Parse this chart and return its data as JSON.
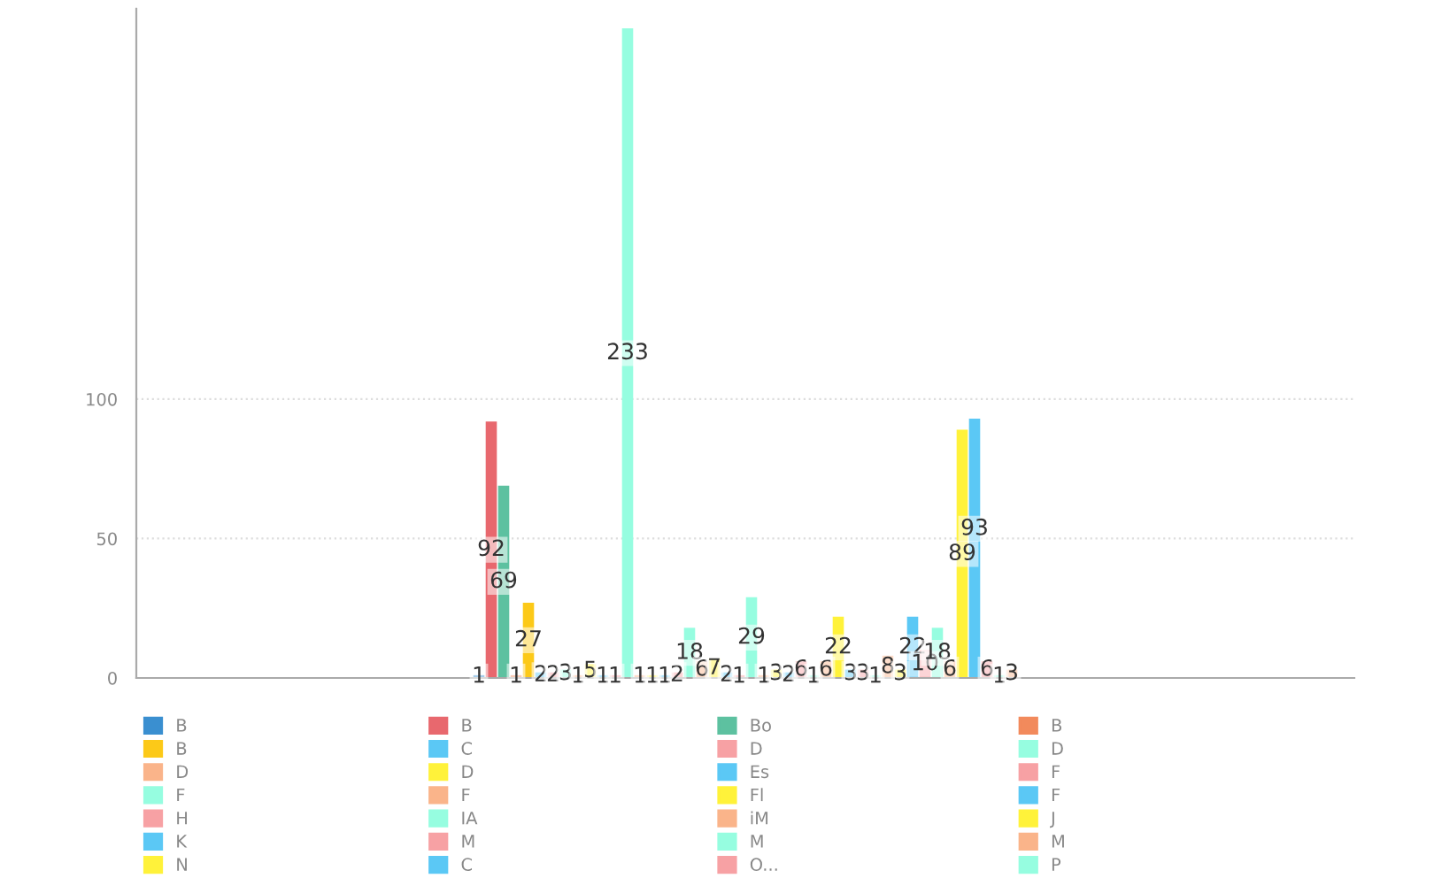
{
  "chart_data": {
    "type": "bar",
    "categories": [
      null
    ],
    "ylim": [
      0,
      240
    ],
    "yticks": [
      0,
      50,
      100
    ],
    "grid": "y",
    "legend": "bottom",
    "data_labels": true,
    "series": [
      {
        "name": "B",
        "color": "#3a8fd0",
        "values": [
          1
        ]
      },
      {
        "name": "B",
        "color": "#e8686e",
        "values": [
          92
        ]
      },
      {
        "name": "Bo",
        "color": "#5dc1a0",
        "values": [
          69
        ]
      },
      {
        "name": "B",
        "color": "#f28a5c",
        "values": [
          1
        ]
      },
      {
        "name": "B",
        "color": "#fcc918",
        "values": [
          27
        ]
      },
      {
        "name": "C",
        "color": "#5bc8f5",
        "values": [
          2
        ]
      },
      {
        "name": "D",
        "color": "#f7a1a4",
        "values": [
          2
        ]
      },
      {
        "name": "D",
        "color": "#96fde0",
        "values": [
          3
        ]
      },
      {
        "name": "D",
        "color": "#fab48a",
        "values": [
          1
        ]
      },
      {
        "name": "D",
        "color": "#fff23a",
        "values": [
          5
        ]
      },
      {
        "name": "Es",
        "color": "#5bc8f5",
        "values": [
          1
        ]
      },
      {
        "name": "F",
        "color": "#f7a1a4",
        "values": [
          1
        ]
      },
      {
        "name": "F",
        "color": "#96fde0",
        "values": [
          233
        ]
      },
      {
        "name": "F",
        "color": "#fab48a",
        "values": [
          1
        ]
      },
      {
        "name": "Fl",
        "color": "#fff23a",
        "values": [
          1
        ]
      },
      {
        "name": "F",
        "color": "#5bc8f5",
        "values": [
          1
        ]
      },
      {
        "name": "H",
        "color": "#f7a1a4",
        "values": [
          2
        ]
      },
      {
        "name": "IA",
        "color": "#96fde0",
        "values": [
          18
        ]
      },
      {
        "name": "iM",
        "color": "#fab48a",
        "values": [
          6
        ]
      },
      {
        "name": "J",
        "color": "#fff23a",
        "values": [
          7
        ]
      },
      {
        "name": "K",
        "color": "#5bc8f5",
        "values": [
          2
        ]
      },
      {
        "name": "M",
        "color": "#f7a1a4",
        "values": [
          1
        ]
      },
      {
        "name": "M",
        "color": "#96fde0",
        "values": [
          29
        ]
      },
      {
        "name": "M",
        "color": "#fab48a",
        "values": [
          1
        ]
      },
      {
        "name": "N",
        "color": "#fff23a",
        "values": [
          3
        ]
      },
      {
        "name": "C",
        "color": "#5bc8f5",
        "values": [
          2
        ]
      },
      {
        "name": "O...",
        "color": "#f7a1a4",
        "values": [
          6
        ]
      },
      {
        "name": "P",
        "color": "#96fde0",
        "values": [
          1
        ]
      },
      {
        "color": "#fab48a",
        "values": [
          6
        ]
      },
      {
        "color": "#fff23a",
        "values": [
          22
        ]
      },
      {
        "color": "#5bc8f5",
        "values": [
          3
        ]
      },
      {
        "color": "#f7a1a4",
        "values": [
          3
        ]
      },
      {
        "color": "#96fde0",
        "values": [
          1
        ]
      },
      {
        "color": "#fab48a",
        "values": [
          8
        ]
      },
      {
        "color": "#fff23a",
        "values": [
          3
        ]
      },
      {
        "color": "#5bc8f5",
        "values": [
          22
        ]
      },
      {
        "color": "#f7a1a4",
        "values": [
          10
        ]
      },
      {
        "color": "#96fde0",
        "values": [
          18
        ]
      },
      {
        "color": "#fab48a",
        "values": [
          6
        ]
      },
      {
        "color": "#fff23a",
        "values": [
          89
        ]
      },
      {
        "color": "#5bc8f5",
        "values": [
          93
        ]
      },
      {
        "color": "#f7a1a4",
        "values": [
          6
        ]
      },
      {
        "color": "#96fde0",
        "values": [
          1
        ]
      },
      {
        "color": "#fab48a",
        "values": [
          3
        ]
      }
    ]
  }
}
